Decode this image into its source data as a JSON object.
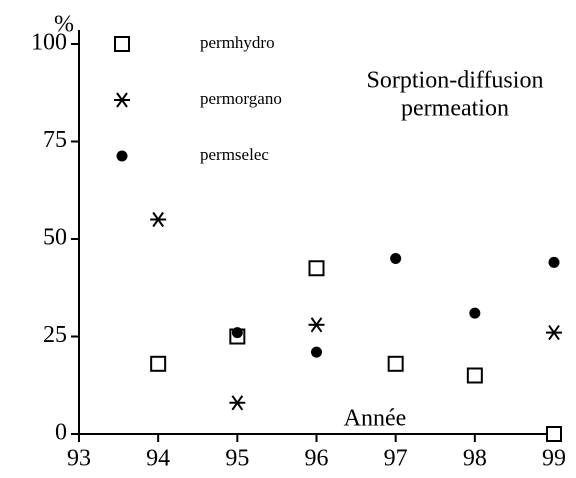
{
  "chart_data": {
    "type": "scatter",
    "y_label": "%",
    "x_label": "Année",
    "annotation": [
      "Sorption-diffusion",
      "permeation"
    ],
    "xlim": [
      93,
      99
    ],
    "xticks": [
      93,
      94,
      95,
      96,
      97,
      98,
      99
    ],
    "ylim": [
      0,
      100
    ],
    "yticks": [
      0,
      25,
      50,
      75,
      100
    ],
    "series": [
      {
        "name": "permhydro",
        "color": "#000000",
        "marker": "square",
        "x": [
          94,
          95,
          96,
          97,
          98,
          99
        ],
        "values": [
          18,
          25,
          42.5,
          18,
          15,
          0
        ]
      },
      {
        "name": "permorgano",
        "color": "#000000",
        "marker": "asterisk",
        "x": [
          94,
          95,
          96,
          99
        ],
        "values": [
          55,
          8,
          28,
          26
        ]
      },
      {
        "name": "permselec",
        "color": "#000000",
        "marker": "circle",
        "x": [
          95,
          96,
          97,
          98,
          99
        ],
        "values": [
          26,
          21,
          45,
          31,
          44
        ]
      }
    ]
  }
}
